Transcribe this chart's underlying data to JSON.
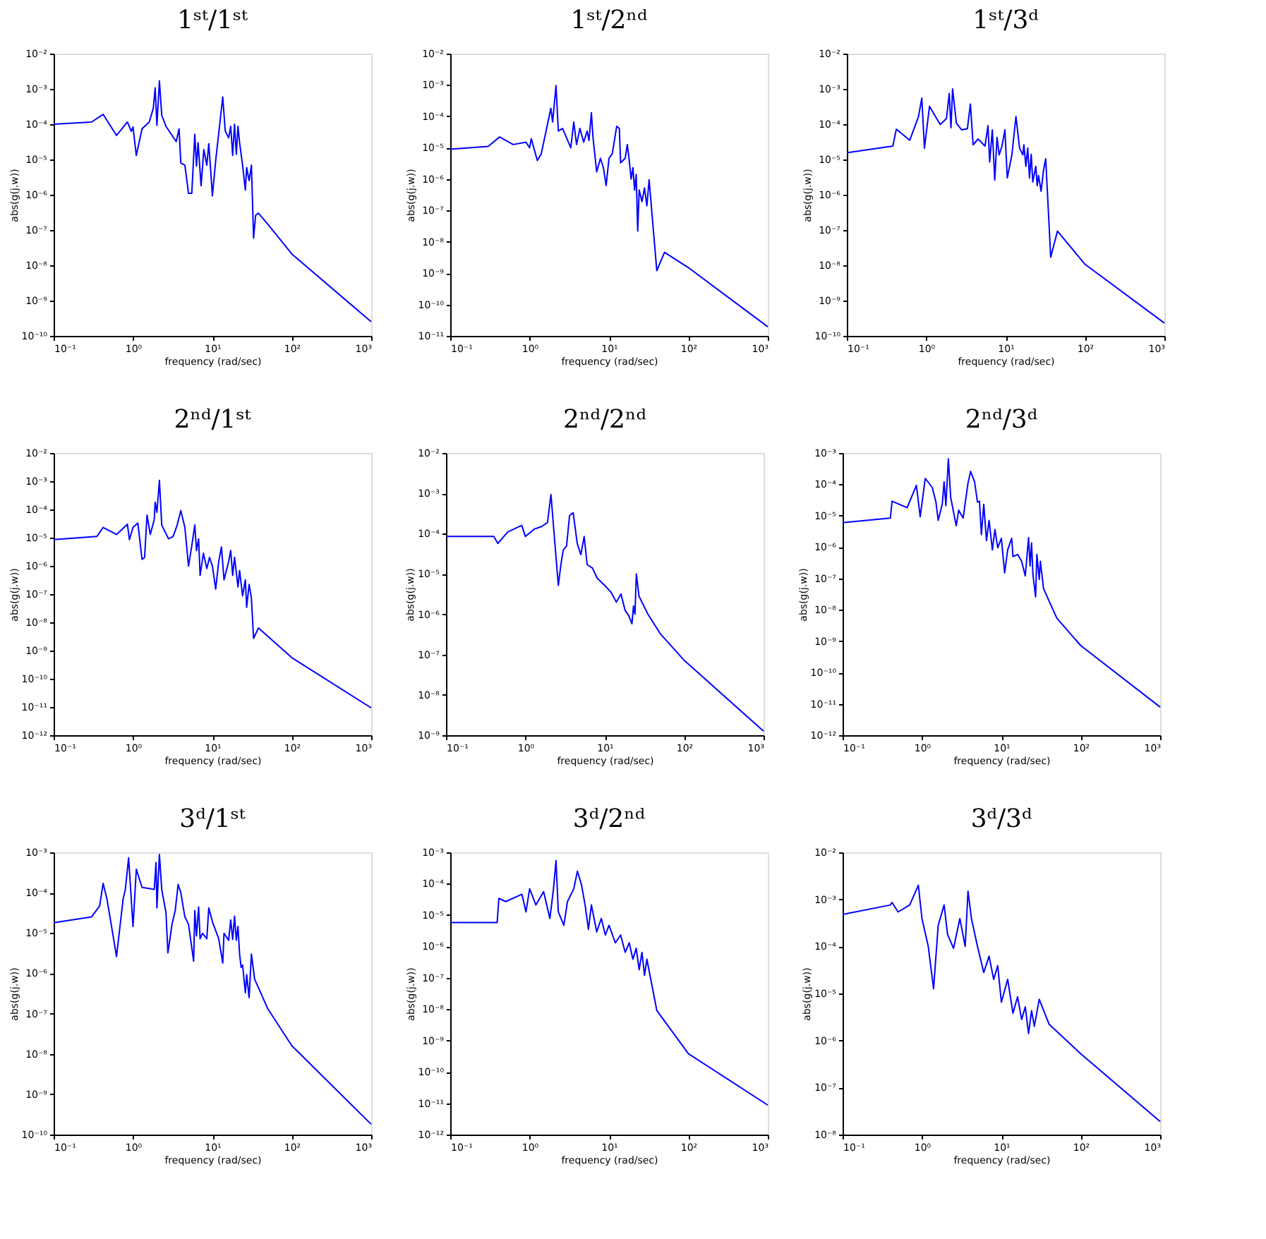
{
  "chart_data": [
    {
      "type": "line",
      "title": "1ˢᵗ/1ˢᵗ",
      "xlabel": "frequency (rad/sec)",
      "ylabel": "abs(g(j.w))",
      "log": "xy",
      "color": "#0000ff",
      "xlim": [
        0.1,
        1000
      ],
      "xticks": [
        {
          "value": 0.1,
          "label": "10⁻¹"
        },
        {
          "value": 1,
          "label": "10⁰"
        },
        {
          "value": 10,
          "label": "10¹"
        },
        {
          "value": 100,
          "label": "10²"
        },
        {
          "value": 1000,
          "label": "10³"
        }
      ],
      "ylim": [
        1e-10,
        0.01
      ],
      "yticks": [
        {
          "value": 1e-10,
          "label": "10⁻¹⁰"
        },
        {
          "value": 1e-09,
          "label": "10⁻⁹"
        },
        {
          "value": 1e-08,
          "label": "10⁻⁸"
        },
        {
          "value": 1e-07,
          "label": "10⁻⁷"
        },
        {
          "value": 1e-06,
          "label": "10⁻⁶"
        },
        {
          "value": 1e-05,
          "label": "10⁻⁵"
        },
        {
          "value": 0.0001,
          "label": "10⁻⁴"
        },
        {
          "value": 0.001,
          "label": "10⁻³"
        },
        {
          "value": 0.01,
          "label": "10⁻²"
        }
      ],
      "x": [
        0.1,
        0.3,
        0.42,
        0.62,
        0.85,
        0.95,
        1.0,
        1.1,
        1.3,
        1.6,
        1.8,
        1.9,
        2.0,
        2.15,
        2.3,
        2.6,
        3.5,
        3.8,
        4.0,
        4.5,
        5.0,
        5.5,
        6.0,
        6.3,
        6.6,
        7.2,
        7.8,
        8.5,
        9.0,
        9.5,
        10,
        11,
        13.5,
        14.5,
        16,
        17,
        18,
        19,
        20,
        21,
        22,
        24,
        26,
        27,
        29,
        31,
        33,
        35,
        38,
        50,
        100,
        1000
      ],
      "values": [
        0.0001,
        0.000115,
        0.00019,
        4.8e-05,
        0.000115,
        6.3e-05,
        8.3e-05,
        1.3e-05,
        7.4e-05,
        0.000115,
        0.00028,
        0.00107,
        9.3e-05,
        0.0017,
        0.00018,
        8.7e-05,
        3.2e-05,
        7.4e-05,
        7.9e-06,
        6.9e-06,
        1.1e-06,
        1.1e-06,
        5.2e-05,
        6.5e-06,
        3e-05,
        1.8e-06,
        1.9e-05,
        6.9e-06,
        2.8e-05,
        5.1e-06,
        9.3e-07,
        9.3e-06,
        0.00059,
        6.5e-05,
        4.1e-05,
        8.7e-05,
        1.3e-05,
        0.0001,
        1.4e-05,
        8.7e-05,
        3e-05,
        6.9e-06,
        1.35e-06,
        5.9e-06,
        2.5e-06,
        6.9e-06,
        5.9e-08,
        2.6e-07,
        3e-07,
        1.45e-07,
        2.1e-08,
        2.5e-10
      ]
    },
    {
      "type": "line",
      "title": "1ˢᵗ/2ⁿᵈ",
      "xlabel": "frequency (rad/sec)",
      "ylabel": "abs(g(j.w))",
      "log": "xy",
      "color": "#0000ff",
      "xlim": [
        0.1,
        1000
      ],
      "xticks": [
        {
          "value": 0.1,
          "label": "10⁻¹"
        },
        {
          "value": 1,
          "label": "10⁰"
        },
        {
          "value": 10,
          "label": "10¹"
        },
        {
          "value": 100,
          "label": "10²"
        },
        {
          "value": 1000,
          "label": "10³"
        }
      ],
      "ylim": [
        1e-11,
        0.01
      ],
      "yticks": [
        {
          "value": 1e-11,
          "label": "10⁻¹¹"
        },
        {
          "value": 1e-10,
          "label": "10⁻¹⁰"
        },
        {
          "value": 1e-09,
          "label": "10⁻⁹"
        },
        {
          "value": 1e-08,
          "label": "10⁻⁸"
        },
        {
          "value": 1e-07,
          "label": "10⁻⁷"
        },
        {
          "value": 1e-06,
          "label": "10⁻⁶"
        },
        {
          "value": 1e-05,
          "label": "10⁻⁵"
        },
        {
          "value": 0.0001,
          "label": "10⁻⁴"
        },
        {
          "value": 0.001,
          "label": "10⁻³"
        },
        {
          "value": 0.01,
          "label": "10⁻²"
        }
      ],
      "x": [
        0.1,
        0.3,
        0.42,
        0.62,
        0.9,
        1.0,
        1.05,
        1.25,
        1.4,
        1.6,
        1.85,
        1.95,
        2.15,
        2.3,
        2.6,
        3.3,
        3.6,
        3.9,
        4.3,
        4.8,
        5.3,
        5.6,
        6.0,
        6.3,
        7.0,
        7.8,
        8.5,
        9.2,
        10,
        11,
        12.5,
        13.5,
        14,
        16,
        17,
        18,
        19,
        20,
        21,
        22,
        23,
        24,
        26,
        28,
        30,
        32,
        40,
        50,
        100,
        1000
      ],
      "values": [
        8.9e-06,
        1.1e-05,
        2.2e-05,
        1.26e-05,
        1.5e-05,
        1e-05,
        1.95e-05,
        3.9e-06,
        6.4e-06,
        3.1e-05,
        0.00018,
        6.6e-05,
        0.00096,
        3.4e-05,
        4.1e-05,
        1e-05,
        6.6e-05,
        1.26e-05,
        4.1e-05,
        1.5e-05,
        3.4e-05,
        1.7e-05,
        0.00013,
        2e-05,
        1.7e-06,
        4.6e-06,
        2.3e-06,
        6.2e-07,
        4.6e-06,
        6.4e-06,
        4.8e-05,
        4.1e-05,
        3.3e-06,
        4.6e-06,
        1.26e-05,
        3.9e-06,
        1e-06,
        2.3e-06,
        4.5e-07,
        1.4e-06,
        2.2e-08,
        4.5e-07,
        1.9e-07,
        5.2e-07,
        1.4e-07,
        9.5e-07,
        1.2e-09,
        4.6e-09,
        1.5e-09,
        1.95e-11
      ]
    },
    {
      "type": "line",
      "title": "1ˢᵗ/3ᵈ",
      "xlabel": "frequency (rad/sec)",
      "ylabel": "abs(g(j.w))",
      "log": "xy",
      "color": "#0000ff",
      "xlim": [
        0.1,
        1000
      ],
      "xticks": [
        {
          "value": 0.1,
          "label": "10⁻¹"
        },
        {
          "value": 1,
          "label": "10⁰"
        },
        {
          "value": 10,
          "label": "10¹"
        },
        {
          "value": 100,
          "label": "10²"
        },
        {
          "value": 1000,
          "label": "10³"
        }
      ],
      "ylim": [
        1e-10,
        0.01
      ],
      "yticks": [
        {
          "value": 1e-10,
          "label": "10⁻¹⁰"
        },
        {
          "value": 1e-09,
          "label": "10⁻⁹"
        },
        {
          "value": 1e-08,
          "label": "10⁻⁸"
        },
        {
          "value": 1e-07,
          "label": "10⁻⁷"
        },
        {
          "value": 1e-06,
          "label": "10⁻⁶"
        },
        {
          "value": 1e-05,
          "label": "10⁻⁵"
        },
        {
          "value": 0.0001,
          "label": "10⁻⁴"
        },
        {
          "value": 0.001,
          "label": "10⁻³"
        },
        {
          "value": 0.01,
          "label": "10⁻²"
        }
      ],
      "x": [
        0.1,
        0.38,
        0.42,
        0.62,
        0.8,
        0.88,
        0.95,
        1.1,
        1.5,
        1.8,
        1.95,
        2.05,
        2.15,
        2.4,
        2.8,
        3.3,
        3.6,
        3.9,
        4.5,
        5.5,
        6.0,
        6.3,
        6.8,
        7.3,
        7.8,
        8.3,
        9.0,
        9.8,
        10.5,
        12,
        13.5,
        15,
        16.5,
        17,
        18,
        19,
        20,
        21,
        22,
        24,
        25,
        26,
        28,
        30,
        32,
        37,
        45,
        100,
        1000
      ],
      "values": [
        1.55e-05,
        2.4e-05,
        7.2e-05,
        3.5e-05,
        0.000165,
        0.00055,
        2.1e-05,
        0.00032,
        9.8e-05,
        0.000145,
        0.00074,
        7.9e-05,
        0.001,
        0.000107,
        6.9e-05,
        7.4e-05,
        0.00037,
        2.6e-05,
        3.8e-05,
        2.4e-05,
        9.1e-05,
        8.5e-06,
        6.9e-05,
        2.6e-06,
        4.2e-05,
        1.35e-05,
        2.4e-05,
        6.9e-05,
        3e-06,
        1.35e-05,
        0.000165,
        2.1e-05,
        1.35e-05,
        2.6e-05,
        6.4e-06,
        2.1e-05,
        3e-06,
        1.4e-05,
        2.3e-06,
        6.4e-06,
        1.8e-06,
        3.5e-06,
        1.26e-06,
        4.8e-06,
        1.05e-05,
        1.7e-08,
        9.3e-08,
        1.07e-08,
        2.3e-10
      ]
    },
    {
      "type": "line",
      "title": "2ⁿᵈ/1ˢᵗ",
      "xlabel": "frequency (rad/sec)",
      "ylabel": "abs(g(j.w))",
      "log": "xy",
      "color": "#0000ff",
      "xlim": [
        0.1,
        1000
      ],
      "xticks": [
        {
          "value": 0.1,
          "label": "10⁻¹"
        },
        {
          "value": 1,
          "label": "10⁰"
        },
        {
          "value": 10,
          "label": "10¹"
        },
        {
          "value": 100,
          "label": "10²"
        },
        {
          "value": 1000,
          "label": "10³"
        }
      ],
      "ylim": [
        1e-12,
        0.01
      ],
      "yticks": [
        {
          "value": 1e-12,
          "label": "10⁻¹²"
        },
        {
          "value": 1e-11,
          "label": "10⁻¹¹"
        },
        {
          "value": 1e-10,
          "label": "10⁻¹⁰"
        },
        {
          "value": 1e-09,
          "label": "10⁻⁹"
        },
        {
          "value": 1e-08,
          "label": "10⁻⁸"
        },
        {
          "value": 1e-07,
          "label": "10⁻⁷"
        },
        {
          "value": 1e-06,
          "label": "10⁻⁶"
        },
        {
          "value": 1e-05,
          "label": "10⁻⁵"
        },
        {
          "value": 0.0001,
          "label": "10⁻⁴"
        },
        {
          "value": 0.001,
          "label": "10⁻³"
        },
        {
          "value": 0.01,
          "label": "10⁻²"
        }
      ],
      "x": [
        0.1,
        0.35,
        0.42,
        0.62,
        0.85,
        0.9,
        1.0,
        1.15,
        1.3,
        1.4,
        1.5,
        1.65,
        1.85,
        1.9,
        2.0,
        2.15,
        2.3,
        2.8,
        3.2,
        3.6,
        4.0,
        4.5,
        5.0,
        5.5,
        6.0,
        6.3,
        6.7,
        7.0,
        7.7,
        8.5,
        9.2,
        10,
        11,
        12,
        13,
        14,
        16,
        17,
        18,
        19,
        21,
        22,
        24,
        26,
        27,
        29,
        31,
        33,
        38,
        100,
        1000
      ],
      "values": [
        8.5e-06,
        1.1e-05,
        2.3e-05,
        1.3e-05,
        3e-05,
        8.5e-06,
        2.3e-05,
        3.3e-05,
        1.7e-06,
        2e-06,
        6.3e-05,
        1.3e-05,
        4.4e-05,
        0.00018,
        7.9e-05,
        0.00107,
        2.8e-05,
        9.1e-06,
        1.1e-05,
        2.8e-05,
        9.1e-05,
        2.3e-05,
        9.8e-07,
        5.2e-06,
        2.8e-05,
        3.5e-06,
        9.1e-06,
        4.6e-07,
        2.8e-06,
        8.1e-07,
        2e-06,
        9.8e-07,
        1.5e-07,
        1.4e-06,
        4.7e-06,
        3.2e-07,
        1.4e-06,
        3.5e-06,
        4.6e-07,
        2e-06,
        1.8e-07,
        6.8e-07,
        8.7e-08,
        3.2e-07,
        3.4e-08,
        2.2e-07,
        7.1e-08,
        2.7e-09,
        6.3e-09,
        5.6e-10,
        9.3e-12
      ]
    },
    {
      "type": "line",
      "title": "2ⁿᵈ/2ⁿᵈ",
      "xlabel": "frequency (rad/sec)",
      "ylabel": "abs(g(j.w))",
      "log": "xy",
      "color": "#0000ff",
      "xlim": [
        0.1,
        1000
      ],
      "xticks": [
        {
          "value": 0.1,
          "label": "10⁻¹"
        },
        {
          "value": 1,
          "label": "10⁰"
        },
        {
          "value": 10,
          "label": "10¹"
        },
        {
          "value": 100,
          "label": "10²"
        },
        {
          "value": 1000,
          "label": "10³"
        }
      ],
      "ylim": [
        1e-09,
        0.01
      ],
      "yticks": [
        {
          "value": 1e-09,
          "label": "10⁻⁹"
        },
        {
          "value": 1e-08,
          "label": "10⁻⁸"
        },
        {
          "value": 1e-07,
          "label": "10⁻⁷"
        },
        {
          "value": 1e-06,
          "label": "10⁻⁶"
        },
        {
          "value": 1e-05,
          "label": "10⁻⁵"
        },
        {
          "value": 0.0001,
          "label": "10⁻⁴"
        },
        {
          "value": 0.001,
          "label": "10⁻³"
        },
        {
          "value": 0.01,
          "label": "10⁻²"
        }
      ],
      "x": [
        0.1,
        0.4,
        0.45,
        0.6,
        0.9,
        1.0,
        1.3,
        1.6,
        1.9,
        2.1,
        2.3,
        2.6,
        2.8,
        3.0,
        3.3,
        3.6,
        4.0,
        4.5,
        5,
        5.5,
        6,
        7,
        8,
        10,
        12,
        14,
        16,
        18,
        20,
        22,
        23,
        24,
        25,
        27,
        35,
        50,
        100,
        1000
      ],
      "values": [
        8.5e-05,
        8.5e-05,
        5.7e-05,
        0.00011,
        0.00016,
        8.5e-05,
        0.00013,
        0.00015,
        0.00019,
        0.00093,
        0.0001,
        5.2e-06,
        1.7e-05,
        3.9e-05,
        4.9e-05,
        0.00028,
        0.00033,
        5.7e-05,
        3e-05,
        8.5e-05,
        1.7e-05,
        1.4e-05,
        7.9e-06,
        5.2e-06,
        3.5e-06,
        2e-06,
        3.2e-06,
        1.26e-06,
        9.3e-07,
        5.8e-07,
        1.6e-06,
        1e-06,
        1e-05,
        2.8e-06,
        1e-06,
        3.3e-07,
        7.2e-08,
        1.26e-09
      ]
    },
    {
      "type": "line",
      "title": "2ⁿᵈ/3ᵈ",
      "xlabel": "frequency (rad/sec)",
      "ylabel": "abs(g(j.w))",
      "log": "xy",
      "color": "#0000ff",
      "xlim": [
        0.1,
        1000
      ],
      "xticks": [
        {
          "value": 0.1,
          "label": "10⁻¹"
        },
        {
          "value": 1,
          "label": "10⁰"
        },
        {
          "value": 10,
          "label": "10¹"
        },
        {
          "value": 100,
          "label": "10²"
        },
        {
          "value": 1000,
          "label": "10³"
        }
      ],
      "ylim": [
        1e-12,
        0.001
      ],
      "yticks": [
        {
          "value": 1e-12,
          "label": "10⁻¹²"
        },
        {
          "value": 1e-11,
          "label": "10⁻¹¹"
        },
        {
          "value": 1e-10,
          "label": "10⁻¹⁰"
        },
        {
          "value": 1e-09,
          "label": "10⁻⁹"
        },
        {
          "value": 1e-08,
          "label": "10⁻⁸"
        },
        {
          "value": 1e-07,
          "label": "10⁻⁷"
        },
        {
          "value": 1e-06,
          "label": "10⁻⁶"
        },
        {
          "value": 1e-05,
          "label": "10⁻⁵"
        },
        {
          "value": 0.0001,
          "label": "10⁻⁴"
        },
        {
          "value": 0.001,
          "label": "10⁻³"
        }
      ],
      "x": [
        0.1,
        0.4,
        0.42,
        0.65,
        0.85,
        0.95,
        1.1,
        1.35,
        1.5,
        1.6,
        1.8,
        1.9,
        2.0,
        2.15,
        2.3,
        2.7,
        2.9,
        3.3,
        3.8,
        4.1,
        4.6,
        5.0,
        5.3,
        5.6,
        6.0,
        6.5,
        7.0,
        7.7,
        8.3,
        9.0,
        10,
        11,
        12,
        13.5,
        14,
        16,
        18,
        20,
        21,
        22,
        23,
        24,
        25,
        27,
        28,
        30,
        31,
        34,
        50,
        100,
        1000
      ],
      "values": [
        6e-06,
        8.4e-06,
        2.9e-05,
        1.8e-05,
        9.3e-05,
        9.3e-06,
        0.000155,
        7.9e-05,
        2.7e-05,
        7.1e-06,
        2.3e-05,
        0.00012,
        2.1e-05,
        0.00065,
        3.8e-05,
        4.8e-06,
        1.5e-05,
        8.4e-06,
        0.00011,
        0.00026,
        0.00012,
        2.7e-05,
        2.9e-05,
        2.5e-06,
        2.3e-05,
        1.6e-06,
        7.1e-06,
        8.1e-07,
        3.6e-06,
        9.5e-07,
        1.9e-06,
        1.5e-07,
        8.1e-07,
        1.9e-06,
        5e-07,
        5.8e-07,
        3.5e-07,
        1.2e-07,
        5e-07,
        2e-06,
        2.5e-07,
        1.35e-06,
        1.3e-07,
        2.6e-08,
        5.8e-07,
        9.3e-08,
        3.5e-07,
        4.7e-08,
        5.4e-09,
        7.2e-10,
        7.9e-12
      ]
    },
    {
      "type": "line",
      "title": "3ᵈ/1ˢᵗ",
      "xlabel": "frequency (rad/sec)",
      "ylabel": "abs(g(j.w))",
      "log": "xy",
      "color": "#0000ff",
      "xlim": [
        0.1,
        1000
      ],
      "xticks": [
        {
          "value": 0.1,
          "label": "10⁻¹"
        },
        {
          "value": 1,
          "label": "10⁰"
        },
        {
          "value": 10,
          "label": "10¹"
        },
        {
          "value": 100,
          "label": "10²"
        },
        {
          "value": 1000,
          "label": "10³"
        }
      ],
      "ylim": [
        1e-10,
        0.001
      ],
      "yticks": [
        {
          "value": 1e-10,
          "label": "10⁻¹⁰"
        },
        {
          "value": 1e-09,
          "label": "10⁻⁹"
        },
        {
          "value": 1e-08,
          "label": "10⁻⁸"
        },
        {
          "value": 1e-07,
          "label": "10⁻⁷"
        },
        {
          "value": 1e-06,
          "label": "10⁻⁶"
        },
        {
          "value": 1e-05,
          "label": "10⁻⁵"
        },
        {
          "value": 0.0001,
          "label": "10⁻⁴"
        },
        {
          "value": 0.001,
          "label": "10⁻³"
        }
      ],
      "x": [
        0.1,
        0.3,
        0.38,
        0.42,
        0.47,
        0.62,
        0.75,
        0.8,
        0.88,
        1.0,
        1.1,
        1.3,
        1.6,
        1.85,
        1.95,
        2.0,
        2.15,
        2.3,
        2.6,
        2.75,
        3.1,
        3.4,
        3.7,
        4.0,
        4.5,
        5.0,
        5.8,
        6.0,
        6.3,
        6.7,
        7.0,
        7.5,
        8.5,
        9.0,
        10,
        12,
        13.5,
        14,
        16,
        17,
        18,
        19,
        20,
        21,
        22,
        23,
        24,
        26,
        27,
        29,
        31,
        34,
        50,
        100,
        1000
      ],
      "values": [
        1.8e-05,
        2.5e-05,
        4.7e-05,
        0.00017,
        6.9e-05,
        2.6e-06,
        6.9e-05,
        0.00012,
        0.00073,
        1.45e-05,
        0.00038,
        0.000135,
        0.000127,
        0.00012,
        0.00056,
        4.2e-05,
        0.00089,
        0.00012,
        3.2e-05,
        3.2e-06,
        1.65e-05,
        3.6e-05,
        0.00016,
        0.0001,
        2.5e-05,
        1.65e-05,
        2e-06,
        3.6e-05,
        8.5e-06,
        4.4e-05,
        7.2e-06,
        9.8e-06,
        7.2e-06,
        4.2e-05,
        1.9e-05,
        7.2e-06,
        1.8e-06,
        9.8e-06,
        6.6e-06,
        2.1e-05,
        6.9e-06,
        2.6e-05,
        6.6e-06,
        1.45e-05,
        3e-06,
        1.4e-06,
        1.6e-06,
        3.3e-07,
        9.3e-07,
        2.5e-07,
        3e-06,
        7.2e-07,
        1.3e-07,
        1.6e-08,
        1.8e-10
      ]
    },
    {
      "type": "line",
      "title": "3ᵈ/2ⁿᵈ",
      "xlabel": "frequency (rad/sec)",
      "ylabel": "abs(g(j.w))",
      "log": "xy",
      "color": "#0000ff",
      "xlim": [
        0.1,
        1000
      ],
      "xticks": [
        {
          "value": 0.1,
          "label": "10⁻¹"
        },
        {
          "value": 1,
          "label": "10⁰"
        },
        {
          "value": 10,
          "label": "10¹"
        },
        {
          "value": 100,
          "label": "10²"
        },
        {
          "value": 1000,
          "label": "10³"
        }
      ],
      "ylim": [
        1e-12,
        0.001
      ],
      "yticks": [
        {
          "value": 1e-12,
          "label": "10⁻¹²"
        },
        {
          "value": 1e-11,
          "label": "10⁻¹¹"
        },
        {
          "value": 1e-10,
          "label": "10⁻¹⁰"
        },
        {
          "value": 1e-09,
          "label": "10⁻⁹"
        },
        {
          "value": 1e-08,
          "label": "10⁻⁸"
        },
        {
          "value": 1e-07,
          "label": "10⁻⁷"
        },
        {
          "value": 1e-06,
          "label": "10⁻⁶"
        },
        {
          "value": 1e-05,
          "label": "10⁻⁵"
        },
        {
          "value": 0.0001,
          "label": "10⁻⁴"
        },
        {
          "value": 0.001,
          "label": "10⁻³"
        }
      ],
      "x": [
        0.1,
        0.39,
        0.41,
        0.5,
        0.8,
        0.9,
        1.0,
        1.2,
        1.5,
        1.8,
        2.0,
        2.15,
        2.3,
        2.7,
        3.0,
        3.6,
        4.0,
        4.5,
        5.0,
        5.5,
        6,
        7,
        8,
        9,
        10,
        12,
        14,
        16,
        18,
        20,
        22,
        24,
        26,
        28,
        30,
        40,
        100,
        1000
      ],
      "values": [
        5.8e-06,
        5.8e-06,
        3.4e-05,
        2.7e-05,
        4.6e-05,
        1.26e-05,
        6.9e-05,
        2.1e-05,
        5.6e-05,
        7.8e-06,
        6.9e-05,
        0.00055,
        1.26e-05,
        4.7e-06,
        2.7e-05,
        6.9e-05,
        0.00025,
        9.3e-05,
        2.1e-05,
        3.5e-06,
        2.1e-05,
        2.9e-06,
        7.8e-06,
        2.3e-06,
        4.7e-06,
        1.3e-06,
        2.3e-06,
        6.5e-07,
        1.3e-06,
        3.9e-07,
        8.7e-07,
        1.8e-07,
        6.5e-07,
        1.2e-07,
        3.9e-07,
        9.1e-09,
        3.8e-10,
        8.7e-12
      ]
    },
    {
      "type": "line",
      "title": "3ᵈ/3ᵈ",
      "xlabel": "frequency (rad/sec)",
      "ylabel": "abs(g(j.w))",
      "log": "xy",
      "color": "#0000ff",
      "xlim": [
        0.1,
        1000
      ],
      "xticks": [
        {
          "value": 0.1,
          "label": "10⁻¹"
        },
        {
          "value": 1,
          "label": "10⁰"
        },
        {
          "value": 10,
          "label": "10¹"
        },
        {
          "value": 100,
          "label": "10²"
        },
        {
          "value": 1000,
          "label": "10³"
        }
      ],
      "ylim": [
        1e-08,
        0.01
      ],
      "yticks": [
        {
          "value": 1e-08,
          "label": "10⁻⁸"
        },
        {
          "value": 1e-07,
          "label": "10⁻⁷"
        },
        {
          "value": 1e-06,
          "label": "10⁻⁶"
        },
        {
          "value": 1e-05,
          "label": "10⁻⁵"
        },
        {
          "value": 0.0001,
          "label": "10⁻⁴"
        },
        {
          "value": 0.001,
          "label": "10⁻³"
        },
        {
          "value": 0.01,
          "label": "10⁻²"
        }
      ],
      "x": [
        0.1,
        0.4,
        0.42,
        0.5,
        0.7,
        0.9,
        1.0,
        1.2,
        1.4,
        1.6,
        1.9,
        2.1,
        2.5,
        3.0,
        3.5,
        3.8,
        4.2,
        5,
        6,
        7,
        8,
        9,
        10,
        12,
        14,
        16,
        18,
        20,
        22,
        24,
        26,
        30,
        40,
        100,
        1000
      ],
      "values": [
        0.00048,
        0.00076,
        0.00086,
        0.00054,
        0.00076,
        0.002,
        0.00039,
        0.0001,
        1.26e-05,
        0.00028,
        0.00076,
        0.00018,
        9.1e-05,
        0.00039,
        0.0001,
        0.0015,
        0.00039,
        0.0001,
        2.8e-05,
        6.2e-05,
        2e-05,
        3.9e-05,
        6.5e-06,
        2e-05,
        3.8e-06,
        8.5e-06,
        2.8e-06,
        5.2e-06,
        1.4e-06,
        4.3e-06,
        2e-06,
        7.5e-06,
        2.2e-06,
        5.2e-07,
        1.9e-08
      ]
    }
  ]
}
